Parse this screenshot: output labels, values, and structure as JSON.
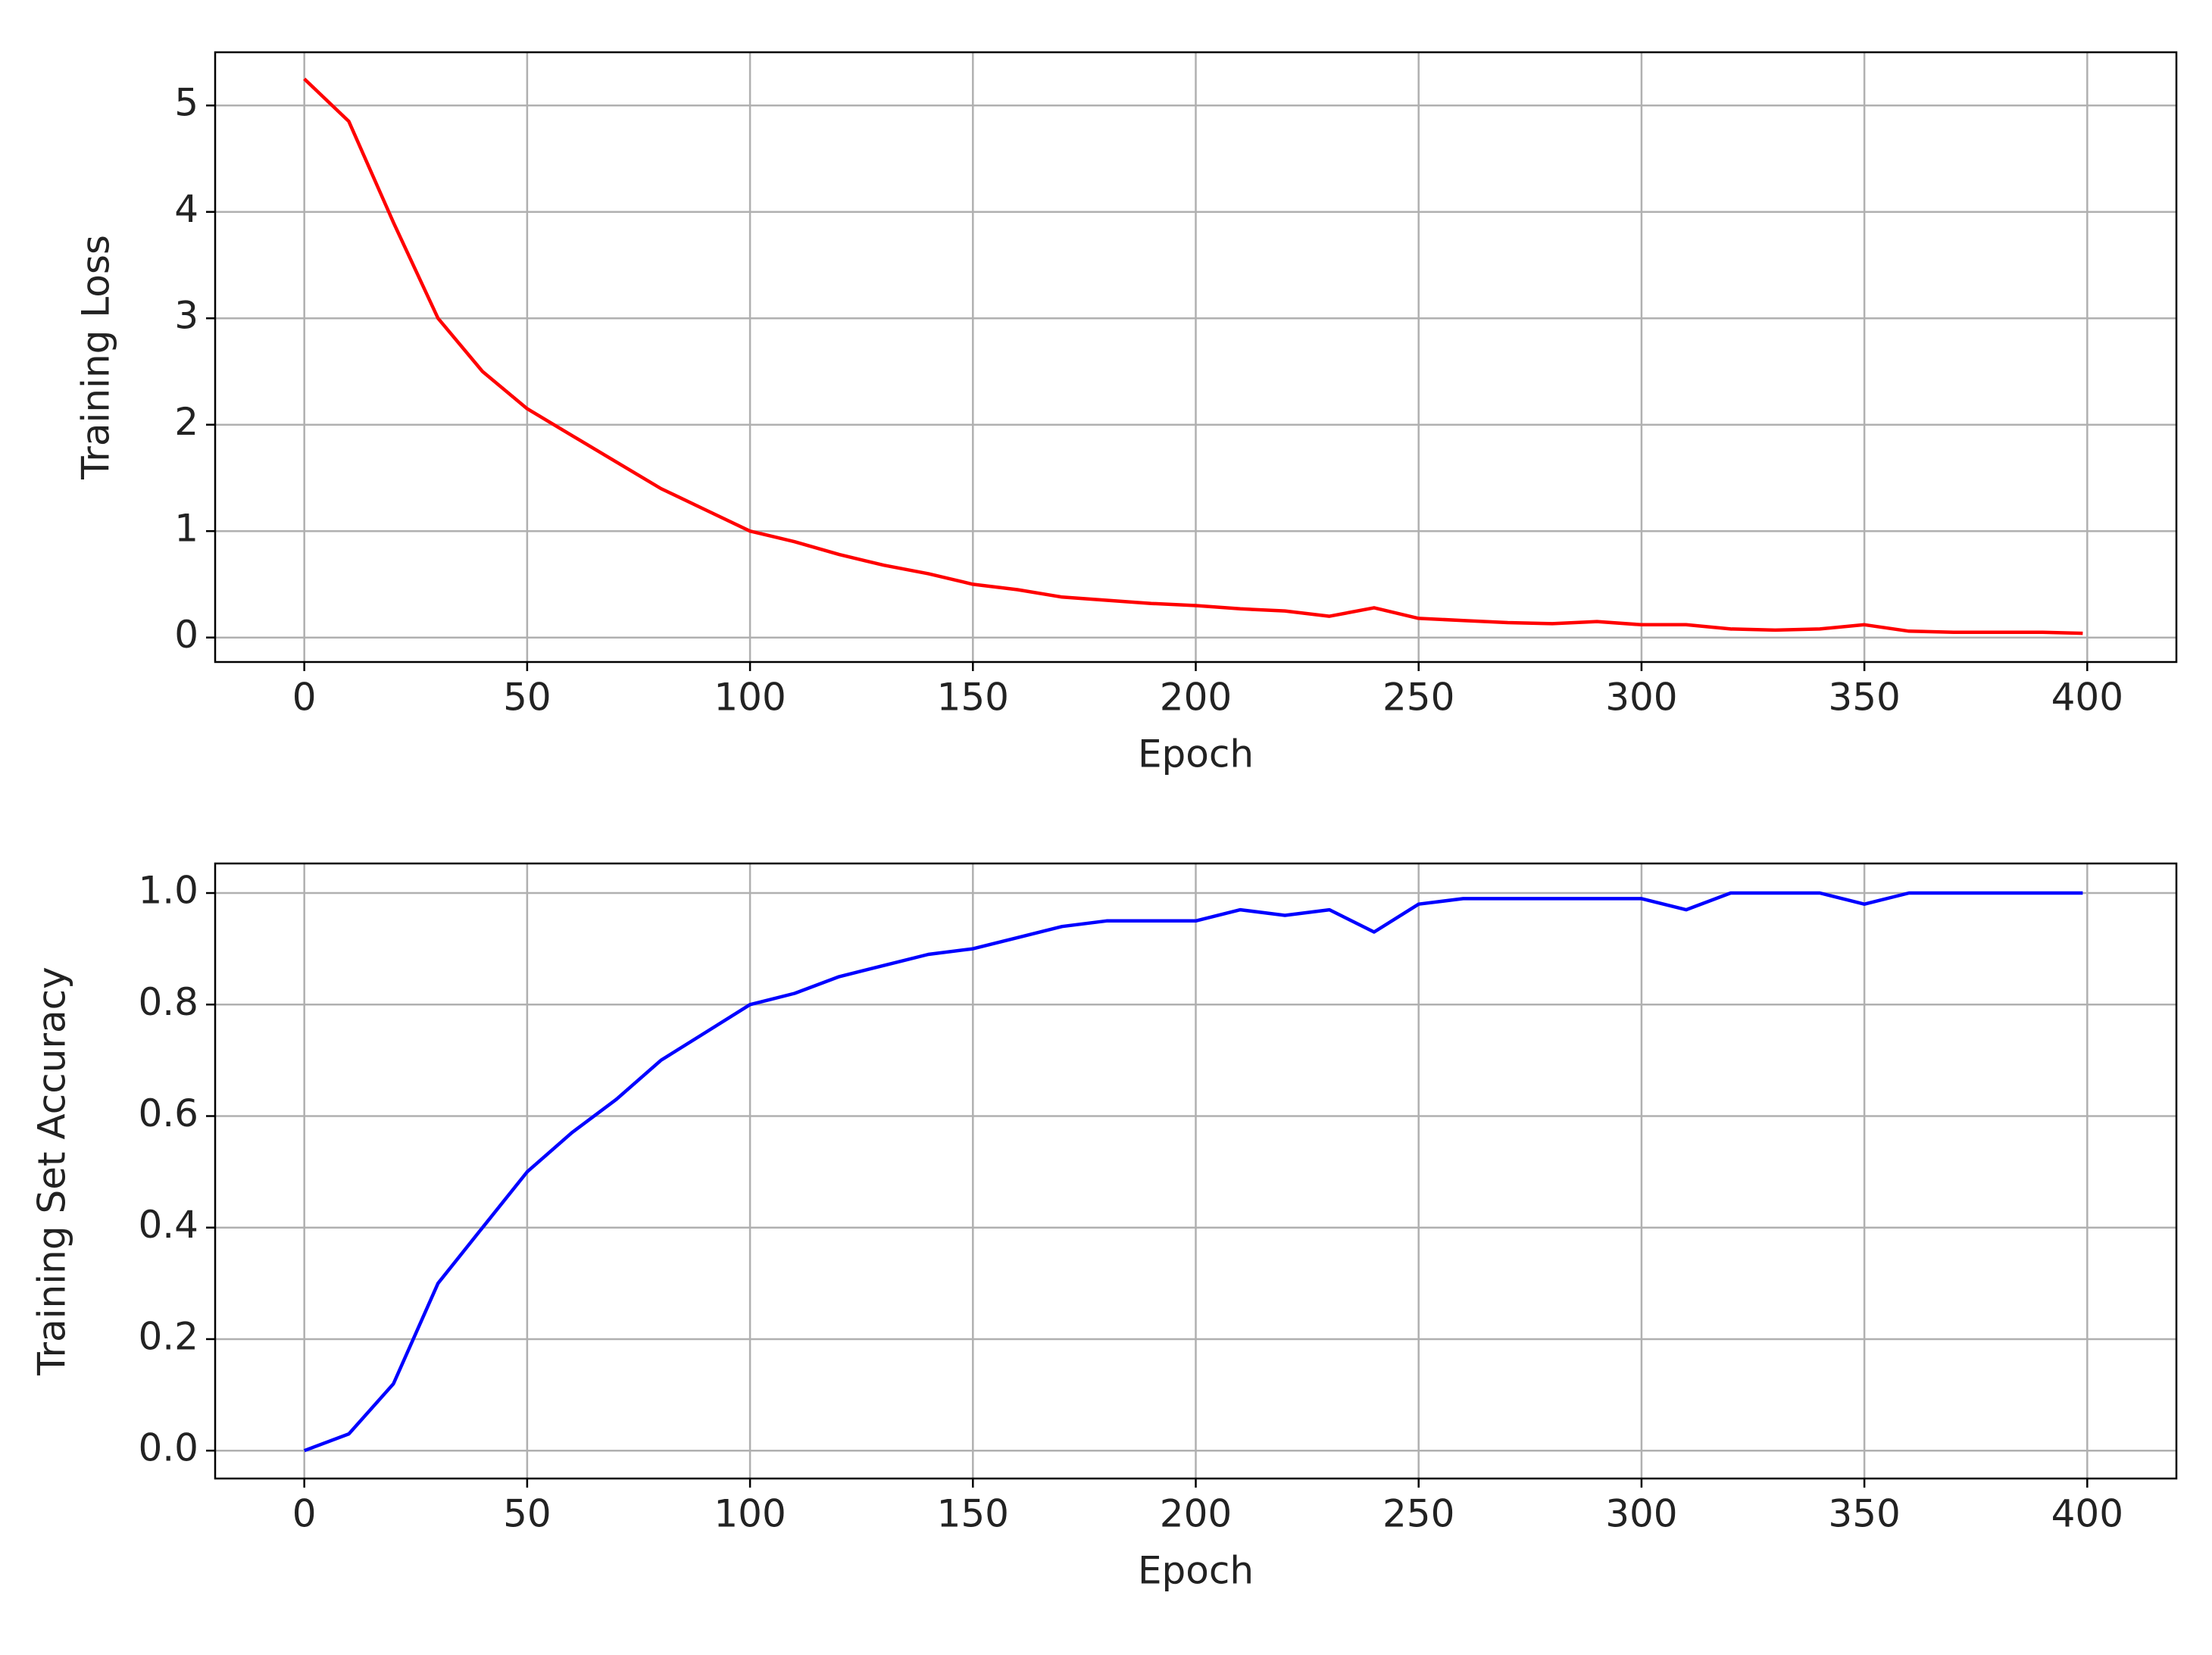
{
  "chart_data": [
    {
      "type": "line",
      "xlabel": "Epoch",
      "ylabel": "Training Loss",
      "color": "#ff0000",
      "grid": true,
      "x": [
        0,
        10,
        20,
        30,
        40,
        50,
        60,
        70,
        80,
        90,
        100,
        110,
        120,
        130,
        140,
        150,
        160,
        170,
        180,
        190,
        200,
        210,
        220,
        230,
        240,
        250,
        260,
        270,
        280,
        290,
        300,
        310,
        320,
        330,
        340,
        350,
        360,
        370,
        380,
        390,
        399
      ],
      "values": [
        5.25,
        4.85,
        3.9,
        3.0,
        2.5,
        2.15,
        1.9,
        1.65,
        1.4,
        1.2,
        1.0,
        0.9,
        0.78,
        0.68,
        0.6,
        0.5,
        0.45,
        0.38,
        0.35,
        0.32,
        0.3,
        0.27,
        0.25,
        0.2,
        0.28,
        0.18,
        0.16,
        0.14,
        0.13,
        0.15,
        0.12,
        0.12,
        0.08,
        0.07,
        0.08,
        0.12,
        0.06,
        0.05,
        0.05,
        0.05,
        0.04
      ],
      "xlim": [
        -20,
        420
      ],
      "xticks": [
        0,
        50,
        100,
        150,
        200,
        250,
        300,
        350,
        400
      ],
      "ylim": [
        -0.23,
        5.5
      ],
      "yticks": [
        0,
        1,
        2,
        3,
        4,
        5
      ]
    },
    {
      "type": "line",
      "xlabel": "Epoch",
      "ylabel": "Training Set Accuracy",
      "color": "#0000ff",
      "grid": true,
      "x": [
        0,
        10,
        20,
        30,
        40,
        50,
        60,
        70,
        80,
        90,
        100,
        110,
        120,
        130,
        140,
        150,
        160,
        170,
        180,
        190,
        200,
        210,
        220,
        230,
        240,
        250,
        260,
        270,
        280,
        290,
        300,
        310,
        320,
        330,
        340,
        350,
        360,
        370,
        380,
        390,
        399
      ],
      "values": [
        0.0,
        0.03,
        0.12,
        0.3,
        0.4,
        0.5,
        0.57,
        0.63,
        0.7,
        0.75,
        0.8,
        0.82,
        0.85,
        0.87,
        0.89,
        0.9,
        0.92,
        0.94,
        0.95,
        0.95,
        0.95,
        0.97,
        0.96,
        0.97,
        0.93,
        0.98,
        0.99,
        0.99,
        0.99,
        0.99,
        0.99,
        0.97,
        1.0,
        1.0,
        1.0,
        0.98,
        1.0,
        1.0,
        1.0,
        1.0,
        1.0
      ],
      "xlim": [
        -20,
        420
      ],
      "xticks": [
        0,
        50,
        100,
        150,
        200,
        250,
        300,
        350,
        400
      ],
      "ylim": [
        -0.05,
        1.053
      ],
      "yticks": [
        {
          "value": 0,
          "label": "0.0"
        },
        {
          "value": 0.2,
          "label": "0.2"
        },
        {
          "value": 0.4,
          "label": "0.4"
        },
        {
          "value": 0.6,
          "label": "0.6"
        },
        {
          "value": 0.8,
          "label": "0.8"
        },
        {
          "value": 1,
          "label": "1.0"
        }
      ]
    }
  ]
}
